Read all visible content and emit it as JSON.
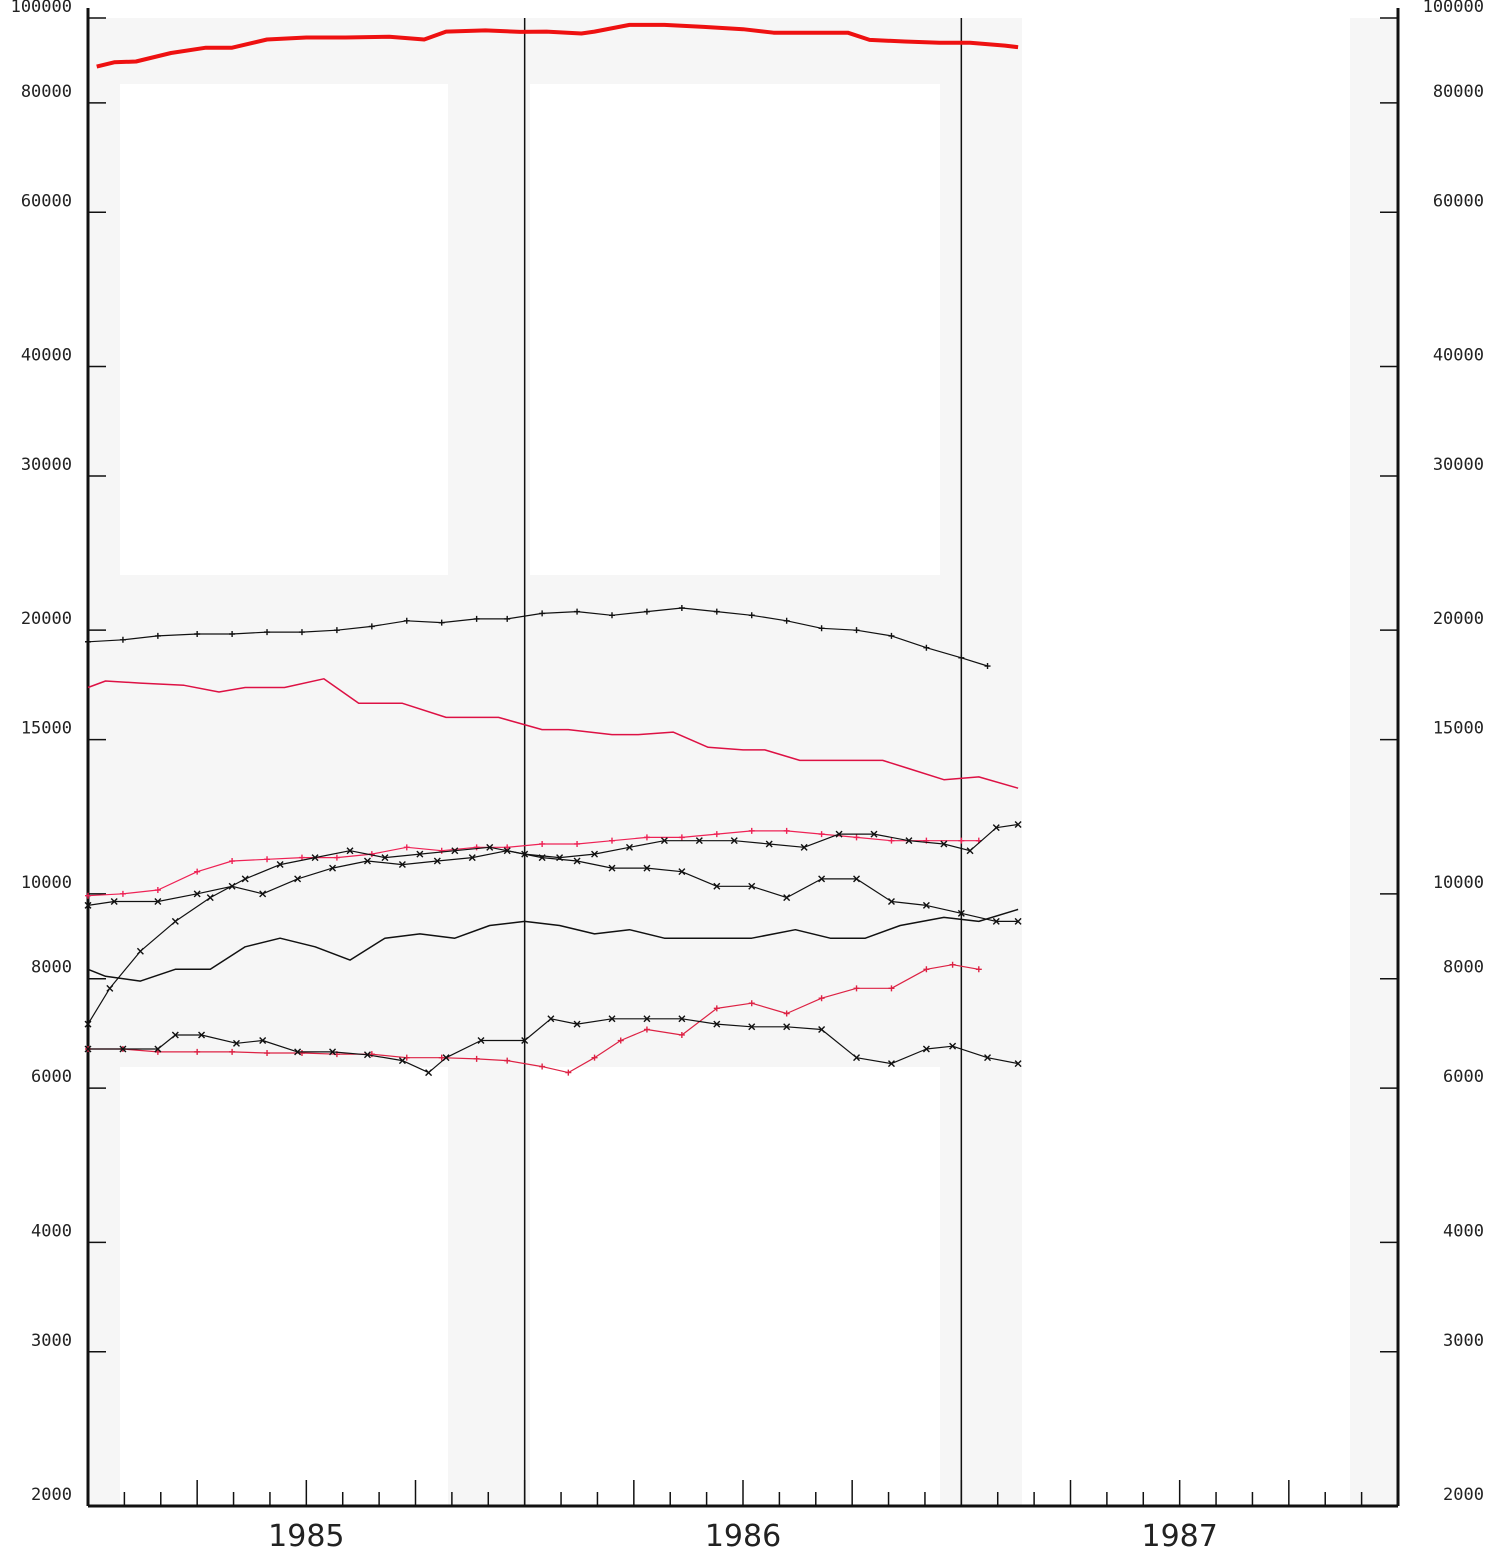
{
  "chart_data": {
    "type": "line",
    "scale": "log",
    "ylim": [
      2000,
      100000
    ],
    "y_ticks": [
      2000,
      3000,
      4000,
      6000,
      8000,
      10000,
      15000,
      20000,
      30000,
      40000,
      60000,
      80000,
      100000
    ],
    "y_tick_labels": [
      "2000",
      "3000",
      "4000",
      "6000",
      "8000",
      "10000",
      "15000",
      "20000",
      "30000",
      "40000",
      "60000",
      "80000",
      "100000"
    ],
    "xlim": [
      1984.5,
      1987.5
    ],
    "x_labels": [
      {
        "x": 1985.0,
        "text": "1985"
      },
      {
        "x": 1986.0,
        "text": "1986"
      },
      {
        "x": 1987.0,
        "text": "1987"
      }
    ],
    "vertical_markers": [
      1985.5,
      1986.5
    ],
    "grid": false,
    "series": [
      {
        "color": "#ee1111",
        "style": "thick-line",
        "x": [
          1984.52,
          1984.56,
          1984.61,
          1984.69,
          1984.77,
          1984.83,
          1984.91,
          1985.0,
          1985.09,
          1985.19,
          1985.27,
          1985.32,
          1985.41,
          1985.49,
          1985.55,
          1985.63,
          1985.66,
          1985.74,
          1985.82,
          1985.91,
          1986.0,
          1986.07,
          1986.15,
          1986.24,
          1986.29,
          1986.37,
          1986.45,
          1986.52,
          1986.6,
          1986.63
        ],
        "y": [
          88000,
          89000,
          89200,
          91200,
          92500,
          92500,
          94500,
          95000,
          95000,
          95200,
          94500,
          96500,
          96800,
          96400,
          96500,
          96000,
          96500,
          98200,
          98200,
          97700,
          97100,
          96200,
          96200,
          96200,
          94400,
          94000,
          93700,
          93700,
          93000,
          92600
        ]
      },
      {
        "color": "#111111",
        "style": "plus-marker-line",
        "x": [
          1984.5,
          1984.58,
          1984.66,
          1984.75,
          1984.83,
          1984.91,
          1984.99,
          1985.07,
          1985.15,
          1985.23,
          1985.31,
          1985.39,
          1985.46,
          1985.54,
          1985.62,
          1985.7,
          1985.78,
          1985.86,
          1985.94,
          1986.02,
          1986.1,
          1986.18,
          1986.26,
          1986.34,
          1986.42,
          1986.5,
          1986.56
        ],
        "y": [
          19400,
          19500,
          19700,
          19800,
          19800,
          19900,
          19900,
          20000,
          20200,
          20500,
          20400,
          20600,
          20600,
          20900,
          21000,
          20800,
          21000,
          21200,
          21000,
          20800,
          20500,
          20100,
          20000,
          19700,
          19100,
          18600,
          18200
        ]
      },
      {
        "color": "#dd1144",
        "style": "thin-line",
        "x": [
          1984.5,
          1984.54,
          1984.62,
          1984.72,
          1984.8,
          1984.86,
          1984.95,
          1985.04,
          1985.12,
          1985.22,
          1985.32,
          1985.44,
          1985.54,
          1985.6,
          1985.7,
          1985.76,
          1985.84,
          1985.92,
          1986.0,
          1986.05,
          1986.13,
          1986.22,
          1986.32,
          1986.38,
          1986.46,
          1986.54,
          1986.63
        ],
        "y": [
          17200,
          17500,
          17400,
          17300,
          17000,
          17200,
          17200,
          17600,
          16500,
          16500,
          15900,
          15900,
          15400,
          15400,
          15200,
          15200,
          15300,
          14700,
          14600,
          14600,
          14200,
          14200,
          14200,
          13900,
          13500,
          13600,
          13200
        ]
      },
      {
        "color": "#ee2255",
        "style": "plus-marker-line",
        "x": [
          1984.5,
          1984.58,
          1984.66,
          1984.75,
          1984.83,
          1984.91,
          1984.99,
          1985.07,
          1985.15,
          1985.23,
          1985.31,
          1985.39,
          1985.46,
          1985.54,
          1985.62,
          1985.7,
          1985.78,
          1985.86,
          1985.94,
          1986.02,
          1986.1,
          1986.18,
          1986.26,
          1986.34,
          1986.42,
          1986.5,
          1986.54
        ],
        "y": [
          9950,
          10000,
          10100,
          10600,
          10900,
          10950,
          11000,
          11000,
          11100,
          11300,
          11200,
          11300,
          11300,
          11400,
          11400,
          11500,
          11600,
          11600,
          11700,
          11800,
          11800,
          11700,
          11600,
          11500,
          11500,
          11500,
          11500
        ]
      },
      {
        "color": "#111111",
        "style": "cross-marker-line",
        "x": [
          1984.5,
          1984.56,
          1984.66,
          1984.75,
          1984.83,
          1984.9,
          1984.98,
          1985.06,
          1985.14,
          1985.22,
          1985.3,
          1985.38,
          1985.46,
          1985.54,
          1985.62,
          1985.7,
          1985.78,
          1985.86,
          1985.94,
          1986.02,
          1986.1,
          1986.18,
          1986.26,
          1986.34,
          1986.42,
          1986.5,
          1986.58,
          1986.63
        ],
        "y": [
          9700,
          9800,
          9800,
          10000,
          10200,
          10000,
          10400,
          10700,
          10900,
          10800,
          10900,
          11000,
          11200,
          11000,
          10900,
          10700,
          10700,
          10600,
          10200,
          10200,
          9900,
          10400,
          10400,
          9800,
          9700,
          9500,
          9300,
          9300
        ]
      },
      {
        "color": "#111111",
        "style": "cross-marker-line",
        "x": [
          1984.5,
          1984.55,
          1984.62,
          1984.7,
          1984.78,
          1984.86,
          1984.94,
          1985.02,
          1985.1,
          1985.18,
          1985.26,
          1985.34,
          1985.42,
          1985.5,
          1985.58,
          1985.66,
          1985.74,
          1985.82,
          1985.9,
          1985.98,
          1986.06,
          1986.14,
          1986.22,
          1986.3,
          1986.38,
          1986.46,
          1986.52,
          1986.58,
          1986.63
        ],
        "y": [
          7100,
          7800,
          8600,
          9300,
          9900,
          10400,
          10800,
          11000,
          11200,
          11000,
          11100,
          11200,
          11300,
          11100,
          11000,
          11100,
          11300,
          11500,
          11500,
          11500,
          11400,
          11300,
          11700,
          11700,
          11500,
          11400,
          11200,
          11900,
          12000
        ]
      },
      {
        "color": "#111111",
        "style": "thin-line",
        "x": [
          1984.5,
          1984.54,
          1984.62,
          1984.7,
          1984.78,
          1984.86,
          1984.94,
          1985.02,
          1985.1,
          1985.18,
          1985.26,
          1985.34,
          1985.42,
          1985.5,
          1985.58,
          1985.66,
          1985.74,
          1985.82,
          1985.92,
          1986.02,
          1986.12,
          1986.2,
          1986.28,
          1986.36,
          1986.46,
          1986.54,
          1986.63
        ],
        "y": [
          8200,
          8050,
          7950,
          8200,
          8200,
          8700,
          8900,
          8700,
          8400,
          8900,
          9000,
          8900,
          9200,
          9300,
          9200,
          9000,
          9100,
          8900,
          8900,
          8900,
          9100,
          8900,
          8900,
          9200,
          9400,
          9300,
          9600
        ]
      },
      {
        "color": "#dd2244",
        "style": "plus-marker-line",
        "x": [
          1984.5,
          1984.58,
          1984.66,
          1984.75,
          1984.83,
          1984.91,
          1984.99,
          1985.07,
          1985.15,
          1985.23,
          1985.31,
          1985.39,
          1985.46,
          1985.54,
          1985.6,
          1985.66,
          1985.72,
          1985.78,
          1985.86,
          1985.94,
          1986.02,
          1986.1,
          1986.18,
          1986.26,
          1986.34,
          1986.42,
          1986.48,
          1986.54
        ],
        "y": [
          6650,
          6650,
          6600,
          6600,
          6600,
          6580,
          6580,
          6560,
          6560,
          6500,
          6500,
          6480,
          6450,
          6350,
          6250,
          6500,
          6800,
          7000,
          6900,
          7400,
          7500,
          7300,
          7600,
          7800,
          7800,
          8200,
          8300,
          8200
        ]
      },
      {
        "color": "#111111",
        "style": "cross-marker-line",
        "x": [
          1984.5,
          1984.58,
          1984.66,
          1984.7,
          1984.76,
          1984.84,
          1984.9,
          1984.98,
          1985.06,
          1985.14,
          1985.22,
          1985.28,
          1985.32,
          1985.4,
          1985.5,
          1985.56,
          1985.62,
          1985.7,
          1985.78,
          1985.86,
          1985.94,
          1986.02,
          1986.1,
          1986.18,
          1986.26,
          1986.34,
          1986.42,
          1986.48,
          1986.56,
          1986.63
        ],
        "y": [
          6650,
          6650,
          6650,
          6900,
          6900,
          6750,
          6800,
          6600,
          6600,
          6550,
          6450,
          6250,
          6500,
          6800,
          6800,
          7200,
          7100,
          7200,
          7200,
          7200,
          7100,
          7050,
          7050,
          7000,
          6500,
          6400,
          6650,
          6700,
          6500,
          6400
        ]
      }
    ]
  }
}
